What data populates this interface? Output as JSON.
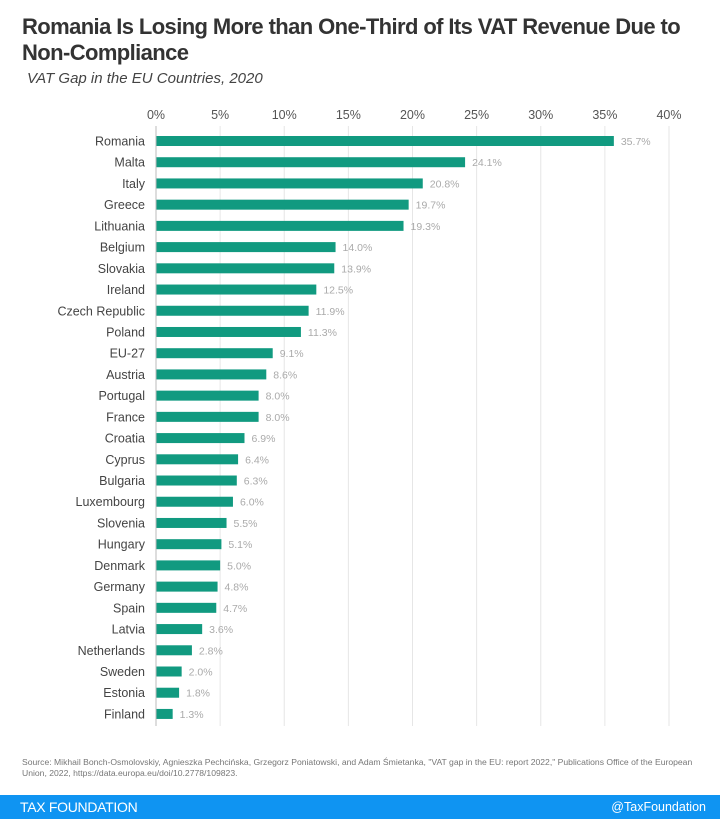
{
  "header": {
    "title": "Romania Is Losing More than One-Third of Its VAT Revenue Due to Non-Compliance",
    "subtitle": "VAT Gap in the EU Countries, 2020"
  },
  "chart_data": {
    "type": "bar",
    "orientation": "horizontal",
    "title": "Romania Is Losing More than One-Third of Its VAT Revenue Due to Non-Compliance",
    "subtitle": "VAT Gap in the EU Countries, 2020",
    "xlabel": "",
    "ylabel": "",
    "xlim": [
      0,
      40
    ],
    "x_ticks": [
      "0%",
      "5%",
      "10%",
      "15%",
      "20%",
      "25%",
      "30%",
      "35%",
      "40%"
    ],
    "x_axis_position": "top",
    "grid": true,
    "bar_color": "#119a80",
    "categories": [
      "Romania",
      "Malta",
      "Italy",
      "Greece",
      "Lithuania",
      "Belgium",
      "Slovakia",
      "Ireland",
      "Czech Republic",
      "Poland",
      "EU-27",
      "Austria",
      "Portugal",
      "France",
      "Croatia",
      "Cyprus",
      "Bulgaria",
      "Luxembourg",
      "Slovenia",
      "Hungary",
      "Denmark",
      "Germany",
      "Spain",
      "Latvia",
      "Netherlands",
      "Sweden",
      "Estonia",
      "Finland"
    ],
    "values": [
      35.7,
      24.1,
      20.8,
      19.7,
      19.3,
      14.0,
      13.9,
      12.5,
      11.9,
      11.3,
      9.1,
      8.6,
      8.0,
      8.0,
      6.9,
      6.4,
      6.3,
      6.0,
      5.5,
      5.1,
      5.0,
      4.8,
      4.7,
      3.6,
      2.8,
      2.0,
      1.8,
      1.3
    ],
    "value_labels": [
      "35.7%",
      "24.1%",
      "20.8%",
      "19.7%",
      "19.3%",
      "14.0%",
      "13.9%",
      "12.5%",
      "11.9%",
      "11.3%",
      "9.1%",
      "8.6%",
      "8.0%",
      "8.0%",
      "6.9%",
      "6.4%",
      "6.3%",
      "6.0%",
      "5.5%",
      "5.1%",
      "5.0%",
      "4.8%",
      "4.7%",
      "3.6%",
      "2.8%",
      "2.0%",
      "1.8%",
      "1.3%"
    ]
  },
  "source": "Source: Mikhail Bonch-Osmolovskiy, Agnieszka Pechcińska, Grzegorz Poniatowski, and Adam Śmietanka, \"VAT gap in the EU: report 2022,\" Publications Office of the European Union, 2022, https://data.europa.eu/doi/10.2778/109823.",
  "footer": {
    "brand": "TAX FOUNDATION",
    "handle": "@TaxFoundation"
  }
}
